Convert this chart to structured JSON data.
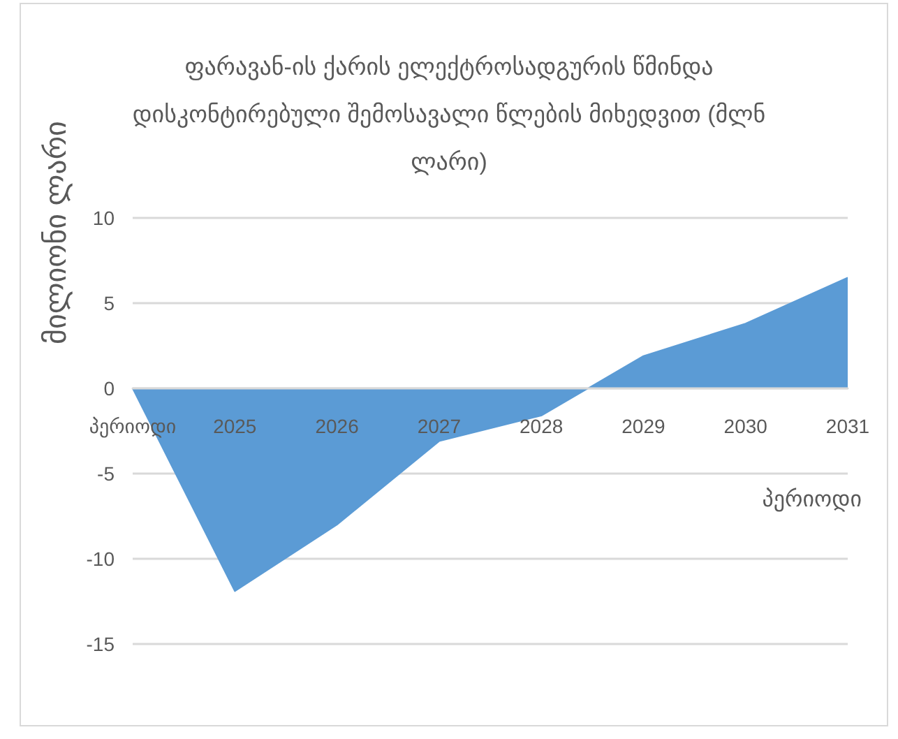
{
  "chart_data": {
    "type": "area",
    "title": "ფარავან-ის ქარის ელექტროსადგურის წმინდა დისკონტირებული შემოსავალი წლების მიხედვით (მლნ ლარი)",
    "xlabel": "პერიოდი",
    "ylabel": "მილიონი ლარი",
    "categories": [
      "პერიოდი",
      "2025",
      "2026",
      "2027",
      "2028",
      "2029",
      "2030",
      "2031"
    ],
    "values": [
      0,
      -11.9,
      -8,
      -3.1,
      -1.6,
      1.9,
      3.8,
      6.5
    ],
    "color": "#5b9bd5",
    "ylim": [
      -15,
      10
    ],
    "yticks": [
      -15,
      -10,
      -5,
      0,
      5,
      10
    ],
    "grid": "y",
    "marker": "none"
  }
}
